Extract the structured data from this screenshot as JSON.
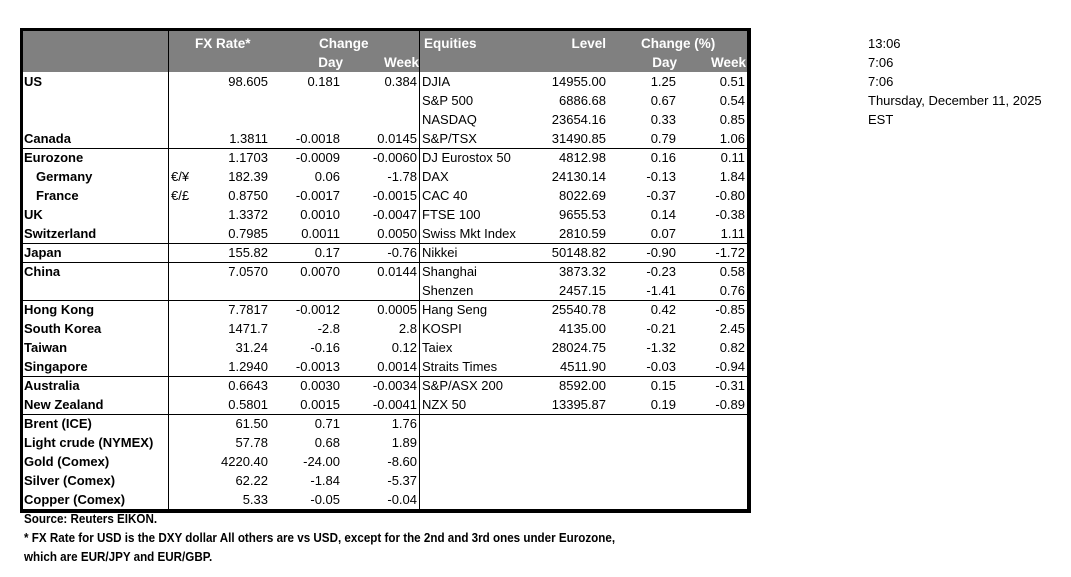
{
  "header": {
    "fx_rate": "FX Rate*",
    "change": "Change",
    "day": "Day",
    "week": "Week",
    "equities": "Equities",
    "level": "Level",
    "change_pct": "Change (%)",
    "eq_day": "Day",
    "eq_week": "Week"
  },
  "fx_rows": [
    {
      "label": "US",
      "pair": "",
      "rate": "98.605",
      "day": "0.181",
      "week": "0.384",
      "indent": false
    },
    {
      "label": "Canada",
      "pair": "",
      "rate": "1.3811",
      "day": "-0.0018",
      "week": "0.0145",
      "indent": false
    },
    {
      "label": "Eurozone",
      "pair": "",
      "rate": "1.1703",
      "day": "-0.0009",
      "week": "-0.0060",
      "indent": false
    },
    {
      "label": "Germany",
      "pair": "€/¥",
      "rate": "182.39",
      "day": "0.06",
      "week": "-1.78",
      "indent": true
    },
    {
      "label": "France",
      "pair": "€/£",
      "rate": "0.8750",
      "day": "-0.0017",
      "week": "-0.0015",
      "indent": true
    },
    {
      "label": "UK",
      "pair": "",
      "rate": "1.3372",
      "day": "0.0010",
      "week": "-0.0047",
      "indent": false
    },
    {
      "label": "Switzerland",
      "pair": "",
      "rate": "0.7985",
      "day": "0.0011",
      "week": "0.0050",
      "indent": false
    },
    {
      "label": "Japan",
      "pair": "",
      "rate": "155.82",
      "day": "0.17",
      "week": "-0.76",
      "indent": false
    },
    {
      "label": "China",
      "pair": "",
      "rate": "7.0570",
      "day": "0.0070",
      "week": "0.0144",
      "indent": false
    },
    {
      "label": "Hong Kong",
      "pair": "",
      "rate": "7.7817",
      "day": "-0.0012",
      "week": "0.0005",
      "indent": false
    },
    {
      "label": "South Korea",
      "pair": "",
      "rate": "1471.7",
      "day": "-2.8",
      "week": "2.8",
      "indent": false
    },
    {
      "label": "Taiwan",
      "pair": "",
      "rate": "31.24",
      "day": "-0.16",
      "week": "0.12",
      "indent": false
    },
    {
      "label": "Singapore",
      "pair": "",
      "rate": "1.2940",
      "day": "-0.0013",
      "week": "0.0014",
      "indent": false
    },
    {
      "label": "Australia",
      "pair": "",
      "rate": "0.6643",
      "day": "0.0030",
      "week": "-0.0034",
      "indent": false
    },
    {
      "label": "New Zealand",
      "pair": "",
      "rate": "0.5801",
      "day": "0.0015",
      "week": "-0.0041",
      "indent": false
    },
    {
      "label": "Brent (ICE)",
      "pair": "",
      "rate": "61.50",
      "day": "0.71",
      "week": "1.76",
      "indent": false
    },
    {
      "label": "Light crude (NYMEX)",
      "pair": "",
      "rate": "57.78",
      "day": "0.68",
      "week": "1.89",
      "indent": false
    },
    {
      "label": "Gold (Comex)",
      "pair": "",
      "rate": "4220.40",
      "day": "-24.00",
      "week": "-8.60",
      "indent": false
    },
    {
      "label": "Silver (Comex)",
      "pair": "",
      "rate": "62.22",
      "day": "-1.84",
      "week": "-5.37",
      "indent": false
    },
    {
      "label": "Copper (Comex)",
      "pair": "",
      "rate": "5.33",
      "day": "-0.05",
      "week": "-0.04",
      "indent": false
    }
  ],
  "equity_rows": [
    {
      "name": "DJIA",
      "level": "14955.00",
      "day": "1.25",
      "week": "0.51"
    },
    {
      "name": "S&P 500",
      "level": "6886.68",
      "day": "0.67",
      "week": "0.54"
    },
    {
      "name": "NASDAQ",
      "level": "23654.16",
      "day": "0.33",
      "week": "0.85"
    },
    {
      "name": "S&P/TSX",
      "level": "31490.85",
      "day": "0.79",
      "week": "1.06"
    },
    {
      "name": "DJ Eurostox 50",
      "level": "4812.98",
      "day": "0.16",
      "week": "0.11"
    },
    {
      "name": "DAX",
      "level": "24130.14",
      "day": "-0.13",
      "week": "1.84"
    },
    {
      "name": "CAC 40",
      "level": "8022.69",
      "day": "-0.37",
      "week": "-0.80"
    },
    {
      "name": "FTSE 100",
      "level": "9655.53",
      "day": "0.14",
      "week": "-0.38"
    },
    {
      "name": "Swiss Mkt Index",
      "level": "2810.59",
      "day": "0.07",
      "week": "1.11"
    },
    {
      "name": "Nikkei",
      "level": "50148.82",
      "day": "-0.90",
      "week": "-1.72"
    },
    {
      "name": "Shanghai",
      "level": "3873.32",
      "day": "-0.23",
      "week": "0.58"
    },
    {
      "name": "Shenzen",
      "level": "2457.15",
      "day": "-1.41",
      "week": "0.76"
    },
    {
      "name": "Hang Seng",
      "level": "25540.78",
      "day": "0.42",
      "week": "-0.85"
    },
    {
      "name": "KOSPI",
      "level": "4135.00",
      "day": "-0.21",
      "week": "2.45"
    },
    {
      "name": "Taiex",
      "level": "28024.75",
      "day": "-1.32",
      "week": "0.82"
    },
    {
      "name": "Straits Times",
      "level": "4511.90",
      "day": "-0.03",
      "week": "-0.94"
    },
    {
      "name": "S&P/ASX  200",
      "level": "8592.00",
      "day": "0.15",
      "week": "-0.31"
    },
    {
      "name": "NZX 50",
      "level": "13395.87",
      "day": "0.19",
      "week": "-0.89"
    }
  ],
  "footer": {
    "source": "Source:  Reuters EIKON.",
    "note_line1": "* FX Rate for USD is the DXY dollar  All others are vs USD, except for the 2nd and 3rd ones under Eurozone,",
    "note_line2": " which are EUR/JPY and EUR/GBP."
  },
  "side": {
    "time1": "13:06",
    "time2": "7:06",
    "time3": "7:06",
    "date": "Thursday, December 11, 2025",
    "tz": "EST"
  }
}
